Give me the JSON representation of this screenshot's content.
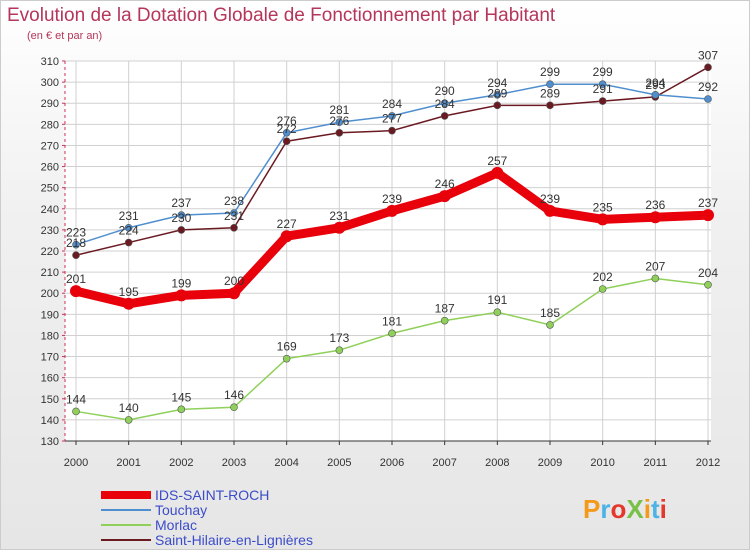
{
  "chart_data": {
    "type": "line",
    "title": "Evolution de la Dotation Globale de Fonctionnement par Habitant",
    "subtitle": "(en € et par an)",
    "xlabel": "",
    "ylabel": "",
    "ylim": [
      130,
      310
    ],
    "ytick_step": 10,
    "grid": true,
    "x": [
      "2000",
      "2001",
      "2002",
      "2003",
      "2004",
      "2005",
      "2006",
      "2007",
      "2008",
      "2009",
      "2010",
      "2011",
      "2012"
    ],
    "series": [
      {
        "name": "IDS-SAINT-ROCH",
        "color": "#e8000b",
        "values": [
          201,
          195,
          199,
          200,
          227,
          231,
          239,
          246,
          257,
          239,
          235,
          236,
          237
        ]
      },
      {
        "name": "Touchay",
        "color": "#4f8fcf",
        "values": [
          223,
          231,
          237,
          238,
          276,
          281,
          284,
          290,
          294,
          299,
          299,
          294,
          292
        ]
      },
      {
        "name": "Morlac",
        "color": "#8fd05a",
        "values": [
          144,
          140,
          145,
          146,
          169,
          173,
          181,
          187,
          191,
          185,
          202,
          207,
          204
        ]
      },
      {
        "name": "Saint-Hilaire-en-Lignières",
        "color": "#6b1a22",
        "values": [
          218,
          224,
          230,
          231,
          272,
          276,
          277,
          284,
          289,
          289,
          291,
          293,
          307
        ]
      }
    ],
    "legend_position": "bottom-left"
  },
  "logo": {
    "text": "ProXiti"
  }
}
